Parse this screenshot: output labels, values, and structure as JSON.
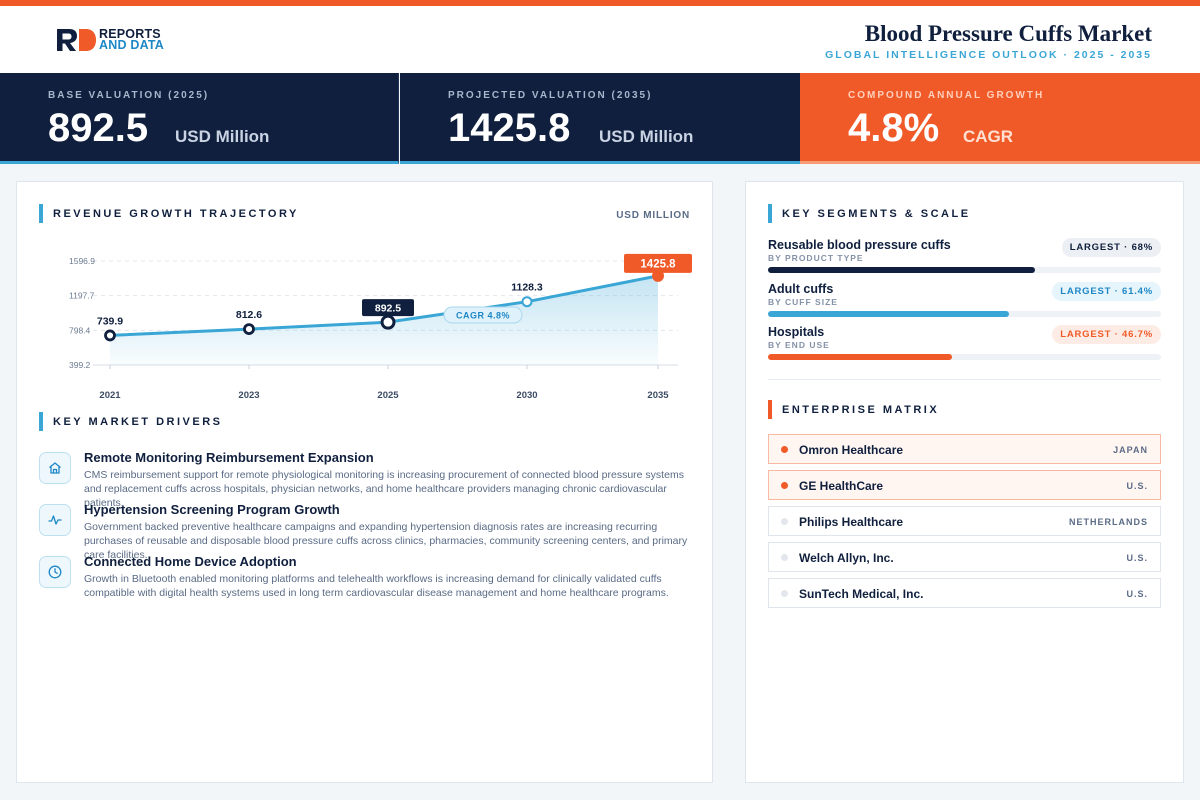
{
  "header": {
    "logo_line1": "REPORTS",
    "logo_line2": "AND DATA",
    "title": "Blood Pressure Cuffs Market",
    "subtitle": "GLOBAL INTELLIGENCE OUTLOOK  ·  2025 - 2035"
  },
  "kpis": [
    {
      "label": "BASE VALUATION (2025)",
      "value": "892.5",
      "unit": "USD Million"
    },
    {
      "label": "PROJECTED VALUATION (2035)",
      "value": "1425.8",
      "unit": "USD Million"
    },
    {
      "label": "COMPOUND ANNUAL GROWTH",
      "value": "4.8%",
      "unit": "CAGR"
    }
  ],
  "chart_section": {
    "title": "REVENUE GROWTH TRAJECTORY",
    "unit": "USD MILLION"
  },
  "chart_data": {
    "type": "area",
    "categories": [
      "2021",
      "2023",
      "2025",
      "2030",
      "2035"
    ],
    "values": [
      739.9,
      812.6,
      892.5,
      1128.3,
      1425.8
    ],
    "data_labels": [
      "739.9",
      "812.6",
      "892.5",
      "1128.3",
      "1425.8"
    ],
    "y_ticks": [
      399.2,
      798.4,
      1197.7,
      1596.9
    ],
    "y_tick_labels": [
      "399.2",
      "798.4",
      "1197.7",
      "1596.9"
    ],
    "ylim": [
      399.2,
      1596.9
    ],
    "annotation": "CAGR 4.8%",
    "highlight_base_index": 2,
    "highlight_end_index": 4,
    "grid": true,
    "colors": {
      "line": "#3aa6d6",
      "base": "#0f1f3d",
      "end": "#f05a28"
    }
  },
  "drivers_section": {
    "title": "KEY MARKET DRIVERS"
  },
  "drivers": [
    {
      "icon": "home-icon",
      "title": "Remote Monitoring Reimbursement Expansion",
      "desc": "CMS reimbursement support for remote physiological monitoring is increasing procurement of connected blood pressure systems and replacement cuffs across hospitals, physician networks, and home healthcare providers managing chronic cardiovascular patients."
    },
    {
      "icon": "pulse-icon",
      "title": "Hypertension Screening Program Growth",
      "desc": "Government backed preventive healthcare campaigns and expanding hypertension diagnosis rates are increasing recurring purchases of reusable and disposable blood pressure cuffs across clinics, pharmacies, community screening centers, and primary care facilities."
    },
    {
      "icon": "clock-icon",
      "title": "Connected Home Device Adoption",
      "desc": "Growth in Bluetooth enabled monitoring platforms and telehealth workflows is increasing demand for clinically validated cuffs compatible with digital health systems used in long term cardiovascular disease management and home healthcare programs."
    }
  ],
  "segments_section": {
    "title": "KEY SEGMENTS & SCALE"
  },
  "segments": [
    {
      "name": "Reusable blood pressure cuffs",
      "sub": "BY PRODUCT TYPE",
      "pill": "LARGEST · 68%",
      "share": 68,
      "color": "#0f1f3d",
      "pill_bg": "#eceff3",
      "pill_fg": "#0f1f3d"
    },
    {
      "name": "Adult cuffs",
      "sub": "BY CUFF SIZE",
      "pill": "LARGEST · 61.4%",
      "share": 61.4,
      "color": "#3aa6d6",
      "pill_bg": "#e6f4fb",
      "pill_fg": "#1e88c7"
    },
    {
      "name": "Hospitals",
      "sub": "BY END USE",
      "pill": "LARGEST · 46.7%",
      "share": 46.7,
      "color": "#f05a28",
      "pill_bg": "#fdece5",
      "pill_fg": "#f05a28"
    }
  ],
  "enterprise_section": {
    "title": "ENTERPRISE MATRIX"
  },
  "enterprises": [
    {
      "name": "Omron Healthcare",
      "country": "JAPAN",
      "highlight": true
    },
    {
      "name": "GE HealthCare",
      "country": "U.S.",
      "highlight": true
    },
    {
      "name": "Philips Healthcare",
      "country": "NETHERLANDS",
      "highlight": false
    },
    {
      "name": "Welch Allyn, Inc.",
      "country": "U.S.",
      "highlight": false
    },
    {
      "name": "SunTech Medical, Inc.",
      "country": "U.S.",
      "highlight": false
    }
  ]
}
